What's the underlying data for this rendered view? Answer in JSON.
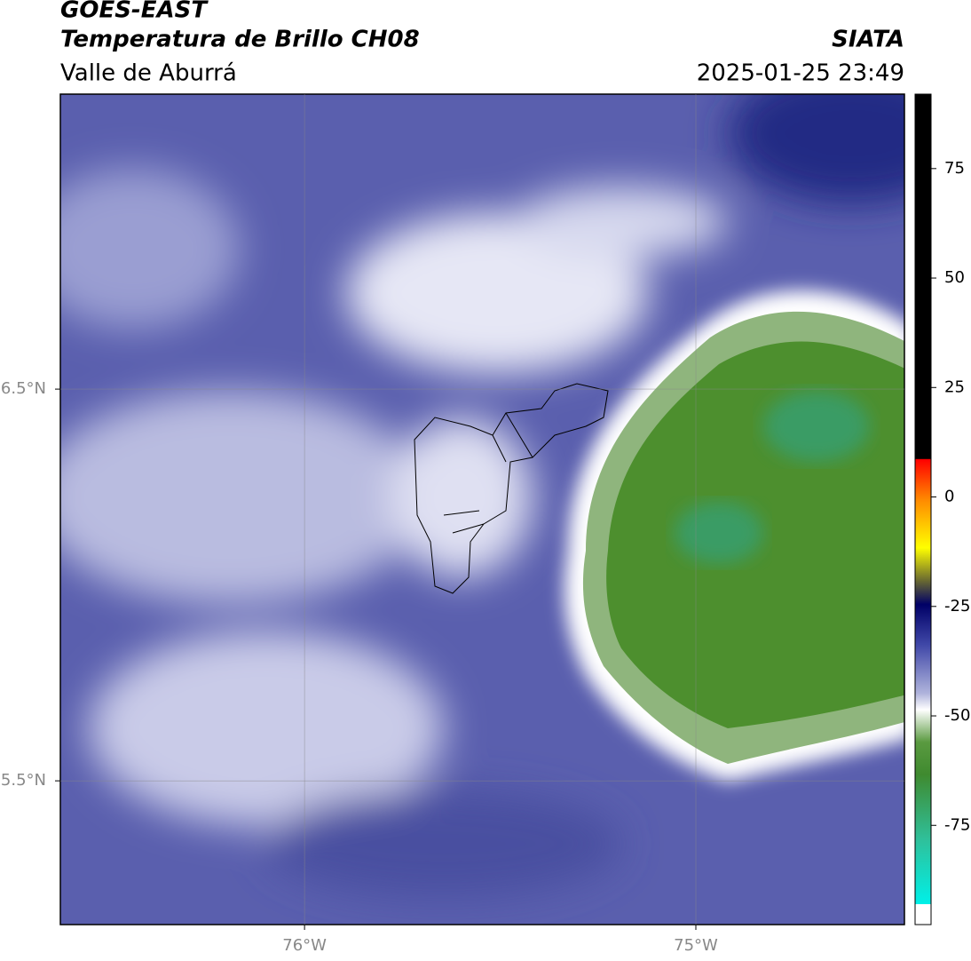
{
  "header": {
    "title": "GOES-EAST",
    "subtitle": "Temperatura de Brillo CH08",
    "region": "Valle de Aburrá",
    "source": "SIATA",
    "timestamp": "2025-01-25 23:49"
  },
  "map": {
    "xlim": [
      -76.624,
      -74.467
    ],
    "ylim": [
      5.133,
      7.253
    ],
    "xticks": [
      {
        "value": -76,
        "label": "76°W"
      },
      {
        "value": -75,
        "label": "75°W"
      }
    ],
    "yticks": [
      {
        "value": 6.5,
        "label": "6.5°N"
      },
      {
        "value": 5.5,
        "label": "5.5°N"
      }
    ],
    "grid": true
  },
  "colorbar": {
    "lim": [
      -93,
      92
    ],
    "ticks": [
      75,
      50,
      25,
      0,
      -25,
      -50,
      -75
    ]
  }
}
